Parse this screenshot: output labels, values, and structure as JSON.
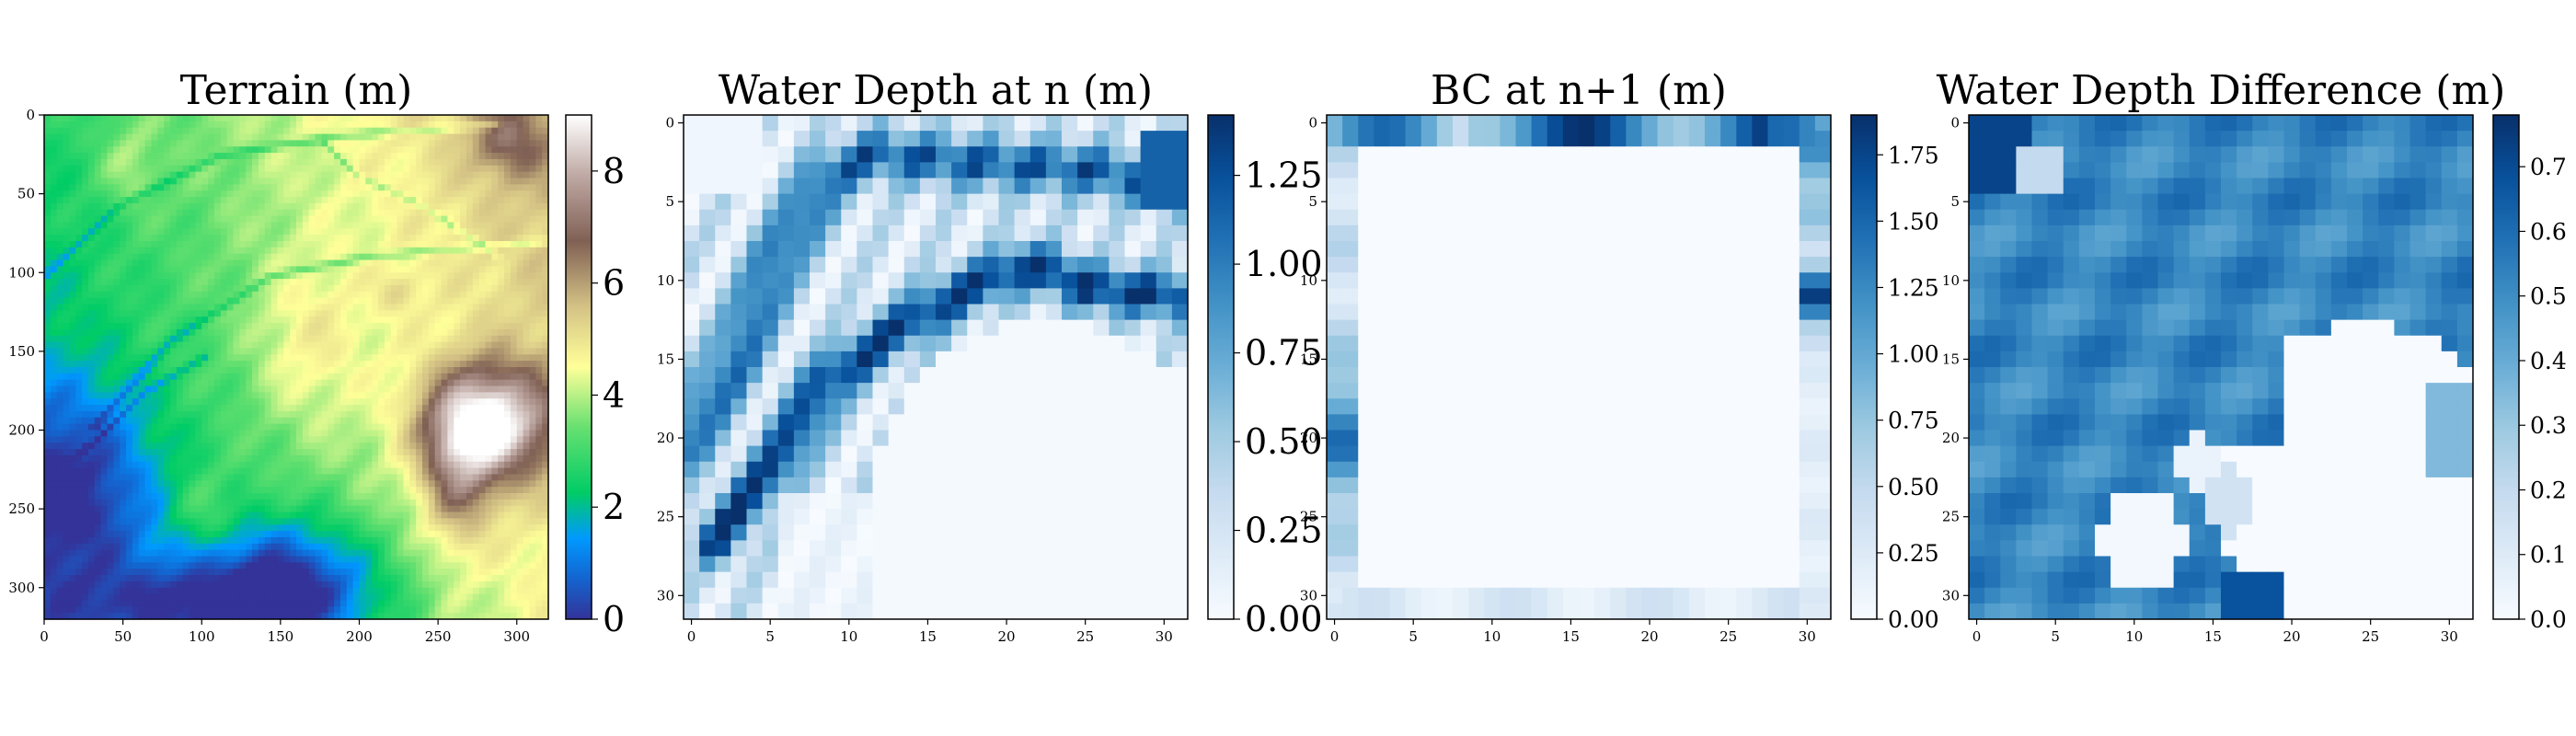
{
  "chart_data": [
    {
      "type": "heatmap",
      "title": "Terrain (m)",
      "colormap": "terrain",
      "grid_size": [
        320,
        320
      ],
      "xlim": [
        0,
        320
      ],
      "ylim": [
        320,
        0
      ],
      "xticks": [
        0,
        50,
        100,
        150,
        200,
        250,
        300
      ],
      "yticks": [
        0,
        50,
        100,
        150,
        200,
        250,
        300
      ],
      "colorbar": {
        "range": [
          0,
          9
        ],
        "ticks": [
          0,
          2,
          4,
          6,
          8
        ]
      },
      "features": {
        "high_plateau_peak_m": 8.5,
        "low_basin_min_m": 0.0,
        "channels": "shallow stream channels running top-left to right"
      }
    },
    {
      "type": "heatmap",
      "title": "Water Depth at n (m)",
      "colormap": "Blues",
      "grid_size": [
        32,
        32
      ],
      "xlim": [
        0,
        31
      ],
      "ylim": [
        31,
        0
      ],
      "xticks": [
        0,
        5,
        10,
        15,
        20,
        25,
        30
      ],
      "yticks": [
        0,
        5,
        10,
        15,
        20,
        25,
        30
      ],
      "colorbar": {
        "range": [
          0,
          1.42
        ],
        "ticks": [
          "0.00",
          "0.25",
          "0.50",
          "0.75",
          "1.00",
          "1.25"
        ]
      },
      "features": {
        "max_depth_m": 1.4,
        "dry_region": "lower right quadrant and upper left corner"
      }
    },
    {
      "type": "heatmap",
      "title": "BC at n+1 (m)",
      "colormap": "Blues",
      "grid_size": [
        32,
        32
      ],
      "xlim": [
        0,
        31
      ],
      "ylim": [
        31,
        0
      ],
      "xticks": [
        0,
        5,
        10,
        15,
        20,
        25,
        30
      ],
      "yticks": [
        0,
        5,
        10,
        15,
        20,
        25,
        30
      ],
      "colorbar": {
        "range": [
          0,
          1.9
        ],
        "ticks": [
          "0.00",
          "0.25",
          "0.50",
          "0.75",
          "1.00",
          "1.25",
          "1.50",
          "1.75"
        ]
      },
      "features": {
        "nonzero_cells": "boundary ring only (rows 0-1, rows 30-31, cols 0-1, cols 30-31)",
        "interior_value_m": 0
      }
    },
    {
      "type": "heatmap",
      "title": "Water Depth Difference (m)",
      "colormap": "Blues",
      "grid_size": [
        32,
        32
      ],
      "xlim": [
        0,
        31
      ],
      "ylim": [
        31,
        0
      ],
      "xticks": [
        0,
        5,
        10,
        15,
        20,
        25,
        30
      ],
      "yticks": [
        0,
        5,
        10,
        15,
        20,
        25,
        30
      ],
      "colorbar": {
        "range": [
          0,
          0.78
        ],
        "ticks": [
          "0.0",
          "0.1",
          "0.2",
          "0.3",
          "0.4",
          "0.5",
          "0.6",
          "0.7"
        ]
      },
      "features": {
        "typical_value_m": 0.5,
        "max_value_m": 0.78,
        "zero_regions": "lower right blob and lower middle patches"
      }
    }
  ]
}
